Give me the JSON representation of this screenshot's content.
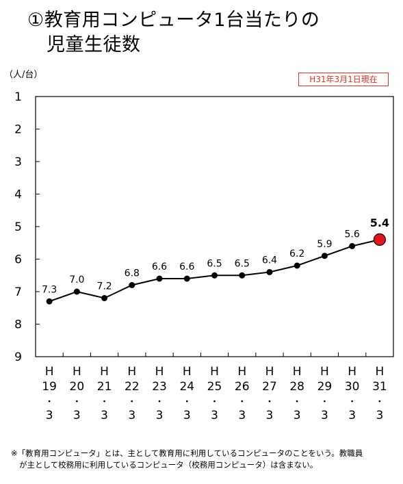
{
  "title": {
    "line1": "①教育用コンピュータ1台当たりの",
    "line2": "児童生徒数"
  },
  "unit_label": "（人/台）",
  "date_badge": "H31年3月1日現在",
  "note": {
    "line1": "※「教育用コンピュータ」とは、主として教育用に利用しているコンピュータのことをいう。教職員",
    "line2": "が主として校務用に利用しているコンピュータ（校務用コンピュータ）は含まない。"
  },
  "colors": {
    "line": "#000000",
    "highlight": "#e8141b",
    "badge": "#e0301e"
  },
  "chart_data": {
    "type": "line",
    "title": "①教育用コンピュータ1台当たりの児童生徒数",
    "ylabel": "（人/台）",
    "y_inverted": true,
    "ylim": [
      1,
      9
    ],
    "yticks": [
      1,
      2,
      3,
      4,
      5,
      6,
      7,
      8,
      9
    ],
    "grid": false,
    "categories": [
      [
        "H",
        "19",
        "・",
        "3"
      ],
      [
        "H",
        "20",
        "・",
        "3"
      ],
      [
        "H",
        "21",
        "・",
        "3"
      ],
      [
        "H",
        "22",
        "・",
        "3"
      ],
      [
        "H",
        "23",
        "・",
        "3"
      ],
      [
        "H",
        "24",
        "・",
        "3"
      ],
      [
        "H",
        "25",
        "・",
        "3"
      ],
      [
        "H",
        "26",
        "・",
        "3"
      ],
      [
        "H",
        "27",
        "・",
        "3"
      ],
      [
        "H",
        "28",
        "・",
        "3"
      ],
      [
        "H",
        "29",
        "・",
        "3"
      ],
      [
        "H",
        "30",
        "・",
        "3"
      ],
      [
        "H",
        "31",
        "・",
        "3"
      ]
    ],
    "values": [
      7.3,
      7.0,
      7.2,
      6.8,
      6.6,
      6.6,
      6.5,
      6.5,
      6.4,
      6.2,
      5.9,
      5.6,
      5.4
    ],
    "data_labels": [
      "7.3",
      "7.0",
      "7.2",
      "6.8",
      "6.6",
      "6.6",
      "6.5",
      "6.5",
      "6.4",
      "6.2",
      "5.9",
      "5.6",
      "5.4"
    ],
    "highlight_index": 12
  }
}
